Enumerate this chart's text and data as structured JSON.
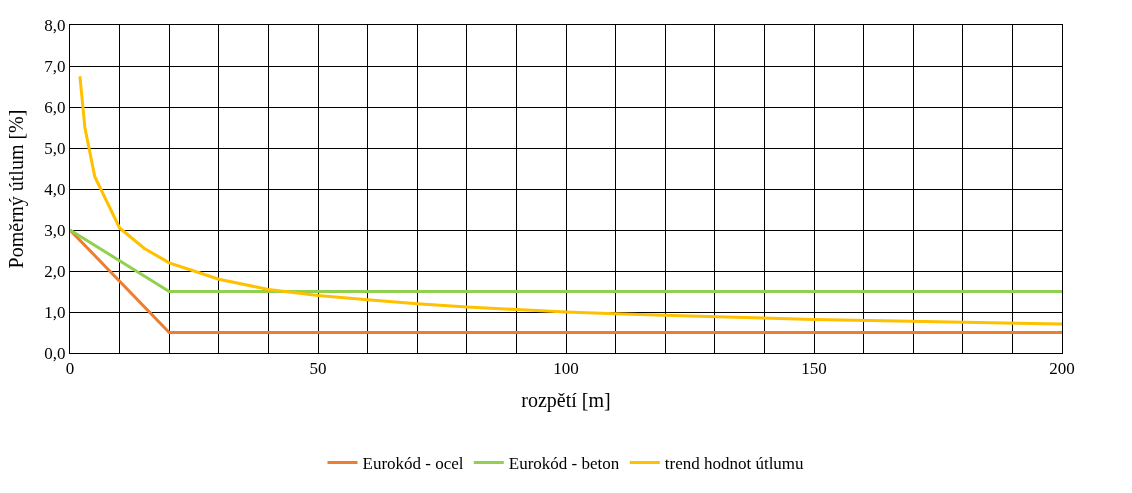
{
  "chart_data": {
    "type": "line",
    "xlabel": "rozpětí [m]",
    "ylabel": "Poměrný útlum [%]",
    "xlim": [
      0,
      200
    ],
    "xticks": [
      0,
      {
        "value": 10,
        "label": null
      },
      {
        "value": 20,
        "label": null
      },
      {
        "value": 30,
        "label": null
      },
      {
        "value": 40,
        "label": null
      },
      50,
      {
        "value": 60,
        "label": null
      },
      {
        "value": 70,
        "label": null
      },
      {
        "value": 80,
        "label": null
      },
      {
        "value": 90,
        "label": null
      },
      100,
      {
        "value": 110,
        "label": null
      },
      {
        "value": 120,
        "label": null
      },
      {
        "value": 130,
        "label": null
      },
      {
        "value": 140,
        "label": null
      },
      150,
      {
        "value": 160,
        "label": null
      },
      {
        "value": 170,
        "label": null
      },
      {
        "value": 180,
        "label": null
      },
      {
        "value": 190,
        "label": null
      },
      200
    ],
    "ylim": [
      0,
      8
    ],
    "yticks": [
      {
        "value": 0,
        "label": "0,0"
      },
      {
        "value": 1,
        "label": "1,0"
      },
      {
        "value": 2,
        "label": "2,0"
      },
      {
        "value": 3,
        "label": "3,0"
      },
      {
        "value": 4,
        "label": "4,0"
      },
      {
        "value": 5,
        "label": "5,0"
      },
      {
        "value": 6,
        "label": "6,0"
      },
      {
        "value": 7,
        "label": "7,0"
      },
      {
        "value": 8,
        "label": "8,0"
      }
    ],
    "grid": true,
    "legend": "bottom",
    "marker": "none",
    "line_style": "solid",
    "series": [
      {
        "name": "Eurokód - ocel",
        "color": "#ed7d31",
        "x": [
          0,
          20,
          200
        ],
        "values": [
          3.0,
          0.5,
          0.5
        ]
      },
      {
        "name": "Eurokód - beton",
        "color": "#92d050",
        "x": [
          0,
          20,
          200
        ],
        "values": [
          3.0,
          1.5,
          1.5
        ]
      },
      {
        "name": "trend hodnot útlumu",
        "color": "#ffc000",
        "x": [
          2,
          3,
          5,
          10,
          15,
          20,
          25,
          30,
          40,
          50,
          60,
          70,
          80,
          90,
          100,
          110,
          125,
          150,
          175,
          200
        ],
        "values": [
          6.75,
          5.5,
          4.3,
          3.05,
          2.55,
          2.2,
          2.0,
          1.8,
          1.55,
          1.4,
          1.3,
          1.2,
          1.12,
          1.06,
          1.0,
          0.96,
          0.9,
          0.82,
          0.76,
          0.71
        ]
      }
    ]
  }
}
